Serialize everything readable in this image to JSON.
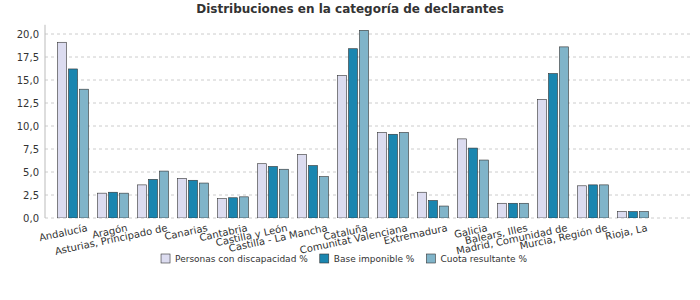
{
  "chart_data": {
    "type": "bar",
    "title": "Distribuciones en la categoría de declarantes",
    "categories": [
      "Andalucía",
      "Aragón",
      "Asturias, Principado de",
      "Canarias",
      "Cantabria",
      "Castilla y León",
      "Castilla - La Mancha",
      "Cataluña",
      "Comunitat Valenciana",
      "Extremadura",
      "Galicia",
      "Balears, Illes",
      "Madrid, Comunidad de",
      "Murcia, Región de",
      "Rioja, La"
    ],
    "series": [
      {
        "name": "Personas con discapacidad %",
        "color": "#dcdcf0",
        "values": [
          19.1,
          2.7,
          3.6,
          4.3,
          2.1,
          5.9,
          6.9,
          15.5,
          9.3,
          2.8,
          8.6,
          1.6,
          12.9,
          3.5,
          0.7
        ]
      },
      {
        "name": "Base imponible %",
        "color": "#1a86b0",
        "values": [
          16.2,
          2.8,
          4.2,
          4.1,
          2.2,
          5.6,
          5.7,
          18.4,
          9.1,
          1.9,
          7.6,
          1.6,
          15.7,
          3.6,
          0.7
        ]
      },
      {
        "name": "Cuota resultante %",
        "color": "#80b4c9",
        "values": [
          14.0,
          2.7,
          5.1,
          3.8,
          2.3,
          5.3,
          4.5,
          20.4,
          9.3,
          1.3,
          6.3,
          1.6,
          18.6,
          3.6,
          0.7
        ]
      }
    ],
    "ylim": [
      0,
      21
    ],
    "yticks": [
      {
        "value": 0,
        "label": "0,0"
      },
      {
        "value": 2.5,
        "label": "2,5"
      },
      {
        "value": 5,
        "label": "5,0"
      },
      {
        "value": 7.5,
        "label": "7,5"
      },
      {
        "value": 10,
        "label": "10,0"
      },
      {
        "value": 12.5,
        "label": "12,5"
      },
      {
        "value": 15,
        "label": "15,0"
      },
      {
        "value": 17.5,
        "label": "17,5"
      },
      {
        "value": 20,
        "label": "20,0"
      }
    ],
    "grid": true,
    "legend": "bottom"
  }
}
